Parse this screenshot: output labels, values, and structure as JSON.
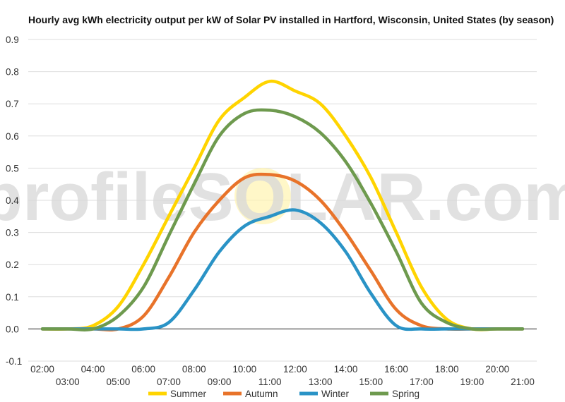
{
  "chart_data": {
    "type": "line",
    "title": "Hourly avg kWh electricity output per kW of Solar PV installed in Hartford, Wisconsin, United States (by season)",
    "watermark": "profileSOLAR.com",
    "x": [
      "02:00",
      "03:00",
      "04:00",
      "05:00",
      "06:00",
      "07:00",
      "08:00",
      "09:00",
      "10:00",
      "11:00",
      "12:00",
      "13:00",
      "14:00",
      "15:00",
      "16:00",
      "17:00",
      "18:00",
      "19:00",
      "20:00",
      "21:00"
    ],
    "xticks_upper": [
      "02:00",
      "04:00",
      "06:00",
      "08:00",
      "10:00",
      "12:00",
      "14:00",
      "16:00",
      "18:00",
      "20:00"
    ],
    "xticks_lower": [
      "03:00",
      "05:00",
      "07:00",
      "09:00",
      "11:00",
      "13:00",
      "15:00",
      "17:00",
      "19:00",
      "21:00"
    ],
    "yticks": [
      "-0.1",
      "0.0",
      "0.1",
      "0.2",
      "0.3",
      "0.4",
      "0.5",
      "0.6",
      "0.7",
      "0.8",
      "0.9"
    ],
    "ylim": [
      -0.1,
      0.9
    ],
    "grid": true,
    "legend_position": "bottom",
    "series": [
      {
        "name": "Summer",
        "color": "#ffd400",
        "values": [
          0.0,
          0.0,
          0.01,
          0.07,
          0.2,
          0.35,
          0.5,
          0.65,
          0.72,
          0.77,
          0.74,
          0.7,
          0.6,
          0.47,
          0.3,
          0.13,
          0.03,
          0.0,
          0.0,
          0.0
        ]
      },
      {
        "name": "Autumn",
        "color": "#e8732a",
        "values": [
          0.0,
          0.0,
          0.0,
          0.0,
          0.04,
          0.16,
          0.3,
          0.4,
          0.47,
          0.48,
          0.46,
          0.4,
          0.3,
          0.18,
          0.06,
          0.01,
          0.0,
          0.0,
          0.0,
          0.0
        ]
      },
      {
        "name": "Winter",
        "color": "#2a93c6",
        "values": [
          0.0,
          0.0,
          0.0,
          0.0,
          0.0,
          0.02,
          0.12,
          0.24,
          0.32,
          0.35,
          0.37,
          0.33,
          0.24,
          0.11,
          0.01,
          0.0,
          0.0,
          0.0,
          0.0,
          0.0
        ]
      },
      {
        "name": "Spring",
        "color": "#6e9a4e",
        "values": [
          0.0,
          0.0,
          0.0,
          0.04,
          0.13,
          0.29,
          0.45,
          0.6,
          0.67,
          0.68,
          0.66,
          0.61,
          0.52,
          0.39,
          0.24,
          0.08,
          0.02,
          0.0,
          0.0,
          0.0
        ]
      }
    ]
  }
}
